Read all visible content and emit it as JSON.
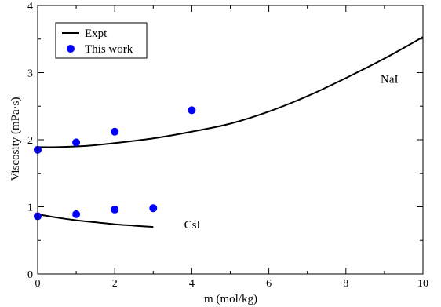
{
  "chart_data": {
    "type": "scatter",
    "xlabel": "m (mol/kg)",
    "ylabel": "Viscosity (mPa·s)",
    "xlim": [
      0,
      10
    ],
    "ylim": [
      0,
      4
    ],
    "x_ticks": [
      "0",
      "2",
      "4",
      "6",
      "8",
      "10"
    ],
    "y_ticks": [
      "0",
      "1",
      "2",
      "3",
      "4"
    ],
    "grid": false,
    "legend_position": "top-left",
    "legend": [
      {
        "label": "Expt",
        "kind": "line",
        "color": "#000000"
      },
      {
        "label": "This work",
        "kind": "marker",
        "color": "#0000ff"
      }
    ],
    "annotations": [
      {
        "text": "NaI",
        "x": 8.9,
        "y": 2.85
      },
      {
        "text": "CsI",
        "x": 3.8,
        "y": 0.68
      }
    ],
    "series": [
      {
        "legend": "Expt",
        "kind": "line",
        "color": "#000000",
        "x": [
          0,
          0.5,
          1,
          1.5,
          2,
          3,
          4,
          5,
          6,
          7,
          8,
          9,
          10
        ],
        "y": [
          1.89,
          1.89,
          1.9,
          1.92,
          1.95,
          2.02,
          2.12,
          2.24,
          2.42,
          2.65,
          2.92,
          3.21,
          3.53
        ]
      },
      {
        "legend": "This work",
        "kind": "marker",
        "color": "#0000ff",
        "x": [
          0,
          1,
          2,
          4
        ],
        "y": [
          1.85,
          1.96,
          2.12,
          2.44
        ]
      },
      {
        "legend": "Expt",
        "kind": "line",
        "color": "#000000",
        "x": [
          0,
          0.5,
          1,
          1.5,
          2,
          2.5,
          3
        ],
        "y": [
          0.89,
          0.84,
          0.8,
          0.77,
          0.74,
          0.72,
          0.7
        ]
      },
      {
        "legend": "This work",
        "kind": "marker",
        "color": "#0000ff",
        "x": [
          0,
          1,
          2,
          3
        ],
        "y": [
          0.86,
          0.89,
          0.96,
          0.98
        ]
      }
    ]
  }
}
